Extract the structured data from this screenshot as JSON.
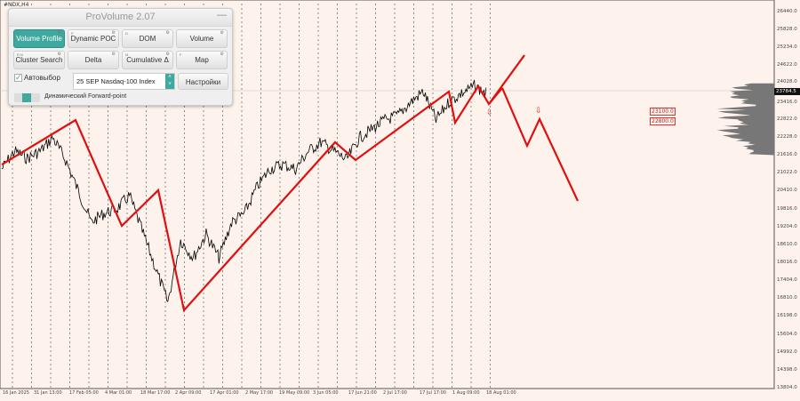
{
  "symbol": "#NDX,H4",
  "panel": {
    "title": "ProVolume 2.07",
    "minimize": "—",
    "buttons": [
      {
        "label": "Volume Profile",
        "key": "V",
        "active": true
      },
      {
        "label": "Dynamic POC",
        "key": "P"
      },
      {
        "label": "DOM",
        "key": "D"
      },
      {
        "label": "Volume",
        "key": ""
      },
      {
        "label": "Cluster Search",
        "key": "R  N"
      },
      {
        "label": "Delta",
        "key": ""
      },
      {
        "label": "Cumulative Δ",
        "key": "M"
      },
      {
        "label": "Map",
        "key": "F"
      }
    ],
    "autoselect": "Автовыбор",
    "instrument": "25 SEP Nasdaq-100 Index",
    "settings": "Настройки",
    "forward": "Динамический Forward-point"
  },
  "y_ticks": [
    "26440.0",
    "25828.0",
    "25234.0",
    "24622.0",
    "24028.0",
    "23416.0",
    "22822.0",
    "22228.0",
    "21616.0",
    "21022.0",
    "20410.0",
    "19816.0",
    "19204.0",
    "18610.0",
    "18016.0",
    "17404.0",
    "16810.0",
    "16198.0",
    "15604.0",
    "14992.0",
    "14398.0",
    "13804.0"
  ],
  "x_ticks": [
    "16 Jan 2025",
    "31 Jan 13:00",
    "17 Feb 05:00",
    "4 Mar 01:00",
    "18 Mar 17:00",
    "2 Apr 09:00",
    "17 Apr 01:00",
    "2 May 17:00",
    "19 May 09:00",
    "3 Jun 05:00",
    "17 Jun 21:00",
    "2 Jul 17:00",
    "17 Jul 17:00",
    "1 Aug 09:00",
    "18 Aug 01:00"
  ],
  "current_price": "23784.5",
  "levels": [
    "23100.0",
    "22800.0"
  ],
  "colors": {
    "accent": "#3fa9a0",
    "zigzag": "#e01010",
    "price": "#000000",
    "profile": "#777777"
  },
  "chart_data": {
    "type": "line",
    "ylim": [
      13804,
      26440
    ],
    "price_path": [
      21153,
      21750,
      21512,
      21750,
      22198,
      21452,
      20406,
      19361,
      19660,
      19809,
      20257,
      19062,
      17867,
      16672,
      18763,
      18166,
      18960,
      18166,
      19360,
      19660,
      20556,
      21153,
      21302,
      21152,
      21750,
      22049,
      21750,
      21452,
      22198,
      22497,
      22796,
      22945,
      23393,
      23752,
      22796,
      23393,
      23692,
      23931,
      23692
    ],
    "zigzag": [
      21301,
      22795,
      19240,
      20436,
      16405,
      22050,
      21452,
      23752,
      22706,
      23931,
      23333,
      23873
    ],
    "forecast_up": [
      23333,
      24975
    ],
    "forecast_down": [
      23873,
      21930,
      22826,
      20078
    ]
  }
}
